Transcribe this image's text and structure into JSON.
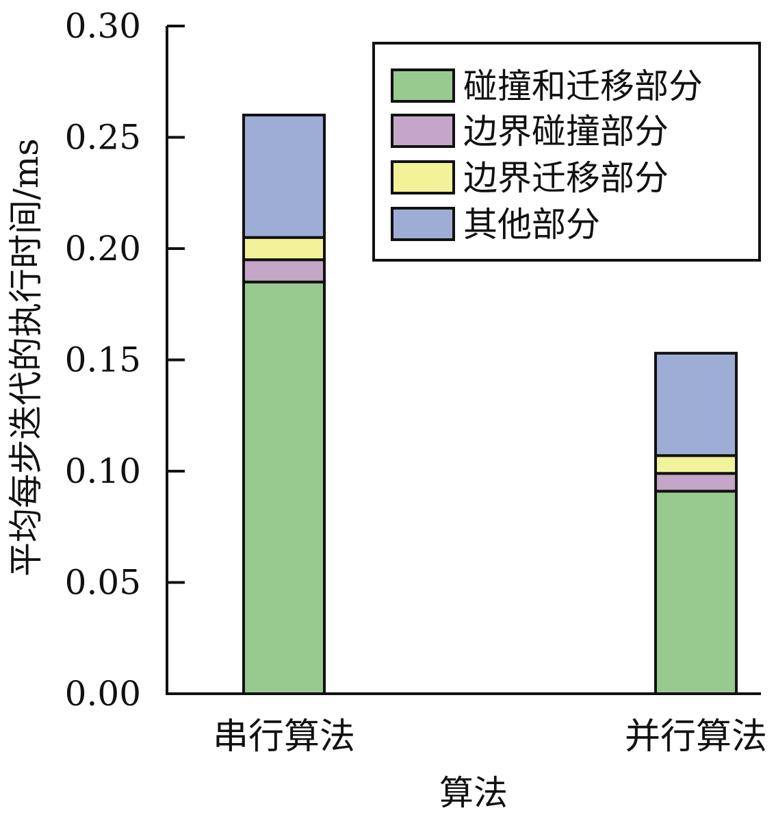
{
  "chart_data": {
    "type": "bar",
    "stacked": true,
    "title": "",
    "xlabel": "算法",
    "ylabel": "平均每步迭代的执行时间/ms",
    "ylim": [
      0,
      0.3
    ],
    "yticks": [
      0.0,
      0.05,
      0.1,
      0.15,
      0.2,
      0.25,
      0.3
    ],
    "ytick_labels": [
      "0.00",
      "0.05",
      "0.10",
      "0.15",
      "0.20",
      "0.25",
      "0.30"
    ],
    "categories": [
      "串行算法",
      "并行算法"
    ],
    "series": [
      {
        "name": "碰撞和迁移部分",
        "values": [
          0.185,
          0.091
        ],
        "color": "#98c98f"
      },
      {
        "name": "边界碰撞部分",
        "values": [
          0.01,
          0.008
        ],
        "color": "#c4a6c8"
      },
      {
        "name": "边界迁移部分",
        "values": [
          0.01,
          0.008
        ],
        "color": "#f2f29a"
      },
      {
        "name": "其他部分",
        "values": [
          0.055,
          0.046
        ],
        "color": "#9dadd6"
      }
    ],
    "grid": false,
    "legend_position": "top-right"
  }
}
